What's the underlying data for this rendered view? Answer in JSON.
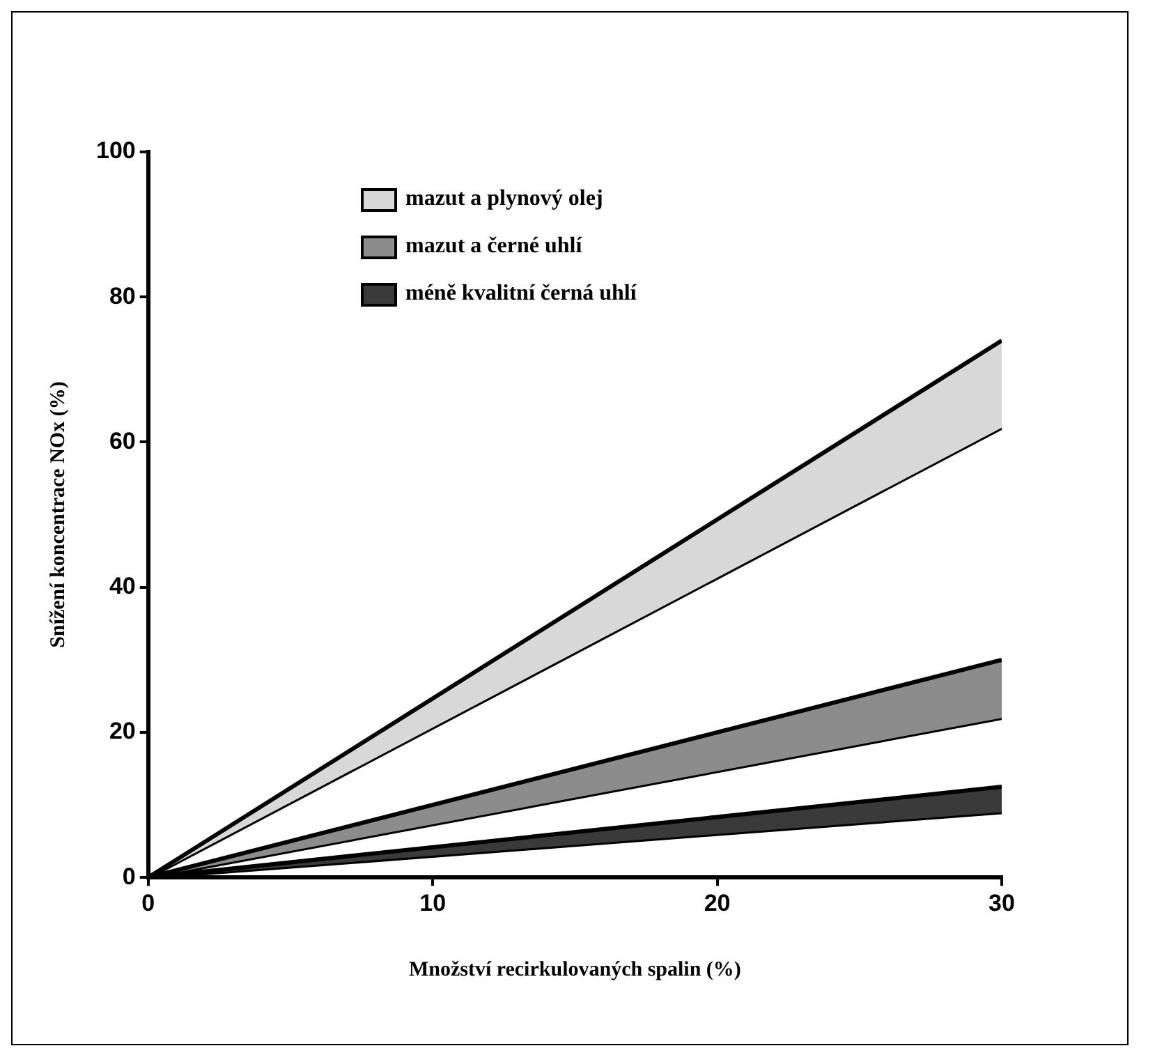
{
  "chart_data": {
    "type": "line",
    "xlabel": "Množství recirkulovaných spalin (%)",
    "ylabel": "Snížení koncentrace NOx (%)",
    "x": [
      0,
      30
    ],
    "series": [
      {
        "name": "mazut a plynový olej",
        "color": "#000000",
        "values": [
          0,
          74
        ]
      },
      {
        "color": "#000000",
        "values": [
          0,
          62
        ]
      },
      {
        "name": "mazut a černé uhlí",
        "color": "#000000",
        "values": [
          0,
          30
        ]
      },
      {
        "color": "#000000",
        "values": [
          0,
          22
        ]
      },
      {
        "name": "méně kvalitní černá uhlí",
        "color": "#000000",
        "values": [
          0,
          12.5
        ]
      },
      {
        "color": "#000000",
        "values": [
          0,
          9
        ]
      }
    ],
    "xlim": [
      0,
      30
    ],
    "xticks": [
      0,
      10,
      20,
      30
    ],
    "ylim": [
      0,
      100
    ],
    "yticks": [
      0,
      20,
      40,
      60,
      80,
      100
    ],
    "grid": false,
    "legend": "top left",
    "marker": "none",
    "line_style": "solid"
  }
}
